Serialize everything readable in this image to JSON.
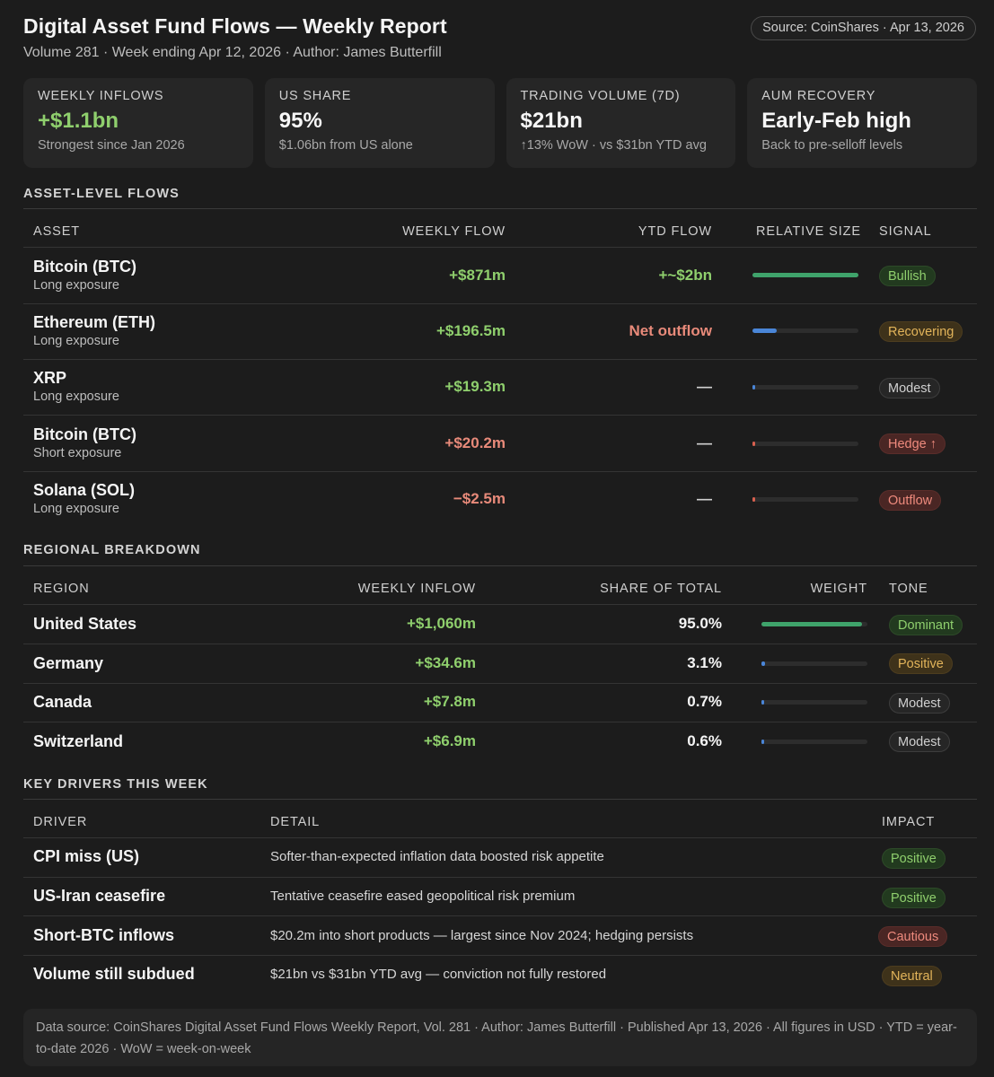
{
  "header": {
    "title": "Digital Asset Fund Flows — Weekly Report",
    "subtitle": "Volume 281 · Week ending Apr 12, 2026 · Author: James Butterfill",
    "source_badge": "Source: CoinShares · Apr 13, 2026"
  },
  "cards": [
    {
      "label": "WEEKLY INFLOWS",
      "value": "+$1.1bn",
      "sub": "Strongest since Jan 2026"
    },
    {
      "label": "US SHARE",
      "value": "95%",
      "sub": "$1.06bn from US alone"
    },
    {
      "label": "TRADING VOLUME (7D)",
      "value": "$21bn",
      "sub": "↑13% WoW · vs $31bn YTD avg"
    },
    {
      "label": "AUM RECOVERY",
      "value": "Early-Feb high",
      "sub": "Back to pre-selloff levels"
    }
  ],
  "colors": {
    "positive": "#8fcf6d",
    "negative": "#e88a7a",
    "bar_green": "#3fa36b",
    "bar_blue": "#4a86d8",
    "bar_red": "#d9604f",
    "background": "#1c1c1c"
  },
  "assets": {
    "section_title": "ASSET-LEVEL FLOWS",
    "headers": {
      "asset": "ASSET",
      "weekly": "WEEKLY FLOW",
      "ytd": "YTD FLOW",
      "size": "RELATIVE SIZE",
      "signal": "SIGNAL"
    },
    "rows": [
      {
        "name": "Bitcoin (BTC)",
        "exposure": "Long exposure",
        "weekly": "+$871m",
        "ytd": "+~$2bn",
        "relative": 1.0,
        "signal": "Bullish"
      },
      {
        "name": "Ethereum (ETH)",
        "exposure": "Long exposure",
        "weekly": "+$196.5m",
        "ytd": "Net outflow",
        "relative": 0.23,
        "signal": "Recovering"
      },
      {
        "name": "XRP",
        "exposure": "Long exposure",
        "weekly": "+$19.3m",
        "ytd": "—",
        "relative": 0.02,
        "signal": "Modest"
      },
      {
        "name": "Bitcoin (BTC)",
        "exposure": "Short exposure",
        "weekly": "+$20.2m",
        "ytd": "—",
        "relative": 0.02,
        "signal": "Hedge ↑"
      },
      {
        "name": "Solana (SOL)",
        "exposure": "Long exposure",
        "weekly": "−$2.5m",
        "ytd": "—",
        "relative": 0.01,
        "signal": "Outflow"
      }
    ]
  },
  "regions": {
    "section_title": "REGIONAL BREAKDOWN",
    "headers": {
      "region": "REGION",
      "weekly": "WEEKLY INFLOW",
      "share": "SHARE OF TOTAL",
      "weight": "WEIGHT",
      "tone": "TONE"
    },
    "rows": [
      {
        "name": "United States",
        "weekly": "+$1,060m",
        "share": "95.0%",
        "weight": 0.95,
        "tone": "Dominant"
      },
      {
        "name": "Germany",
        "weekly": "+$34.6m",
        "share": "3.1%",
        "weight": 0.031,
        "tone": "Positive"
      },
      {
        "name": "Canada",
        "weekly": "+$7.8m",
        "share": "0.7%",
        "weight": 0.007,
        "tone": "Modest"
      },
      {
        "name": "Switzerland",
        "weekly": "+$6.9m",
        "share": "0.6%",
        "weight": 0.006,
        "tone": "Modest"
      }
    ]
  },
  "drivers": {
    "section_title": "KEY DRIVERS THIS WEEK",
    "headers": {
      "driver": "DRIVER",
      "detail": "DETAIL",
      "impact": "IMPACT"
    },
    "rows": [
      {
        "name": "CPI miss (US)",
        "detail": "Softer-than-expected inflation data boosted risk appetite",
        "impact": "Positive"
      },
      {
        "name": "US-Iran ceasefire",
        "detail": "Tentative ceasefire eased geopolitical risk premium",
        "impact": "Positive"
      },
      {
        "name": "Short-BTC inflows",
        "detail": "$20.2m into short products — largest since Nov 2024; hedging persists",
        "impact": "Cautious"
      },
      {
        "name": "Volume still subdued",
        "detail": "$21bn vs $31bn YTD avg — conviction not fully restored",
        "impact": "Neutral"
      }
    ]
  },
  "footer": {
    "text": "Data source: CoinShares Digital Asset Fund Flows Weekly Report, Vol. 281 · Author: James Butterfill · Published Apr 13, 2026 · All figures in USD · YTD = year-to-date 2026 · WoW = week-on-week"
  }
}
